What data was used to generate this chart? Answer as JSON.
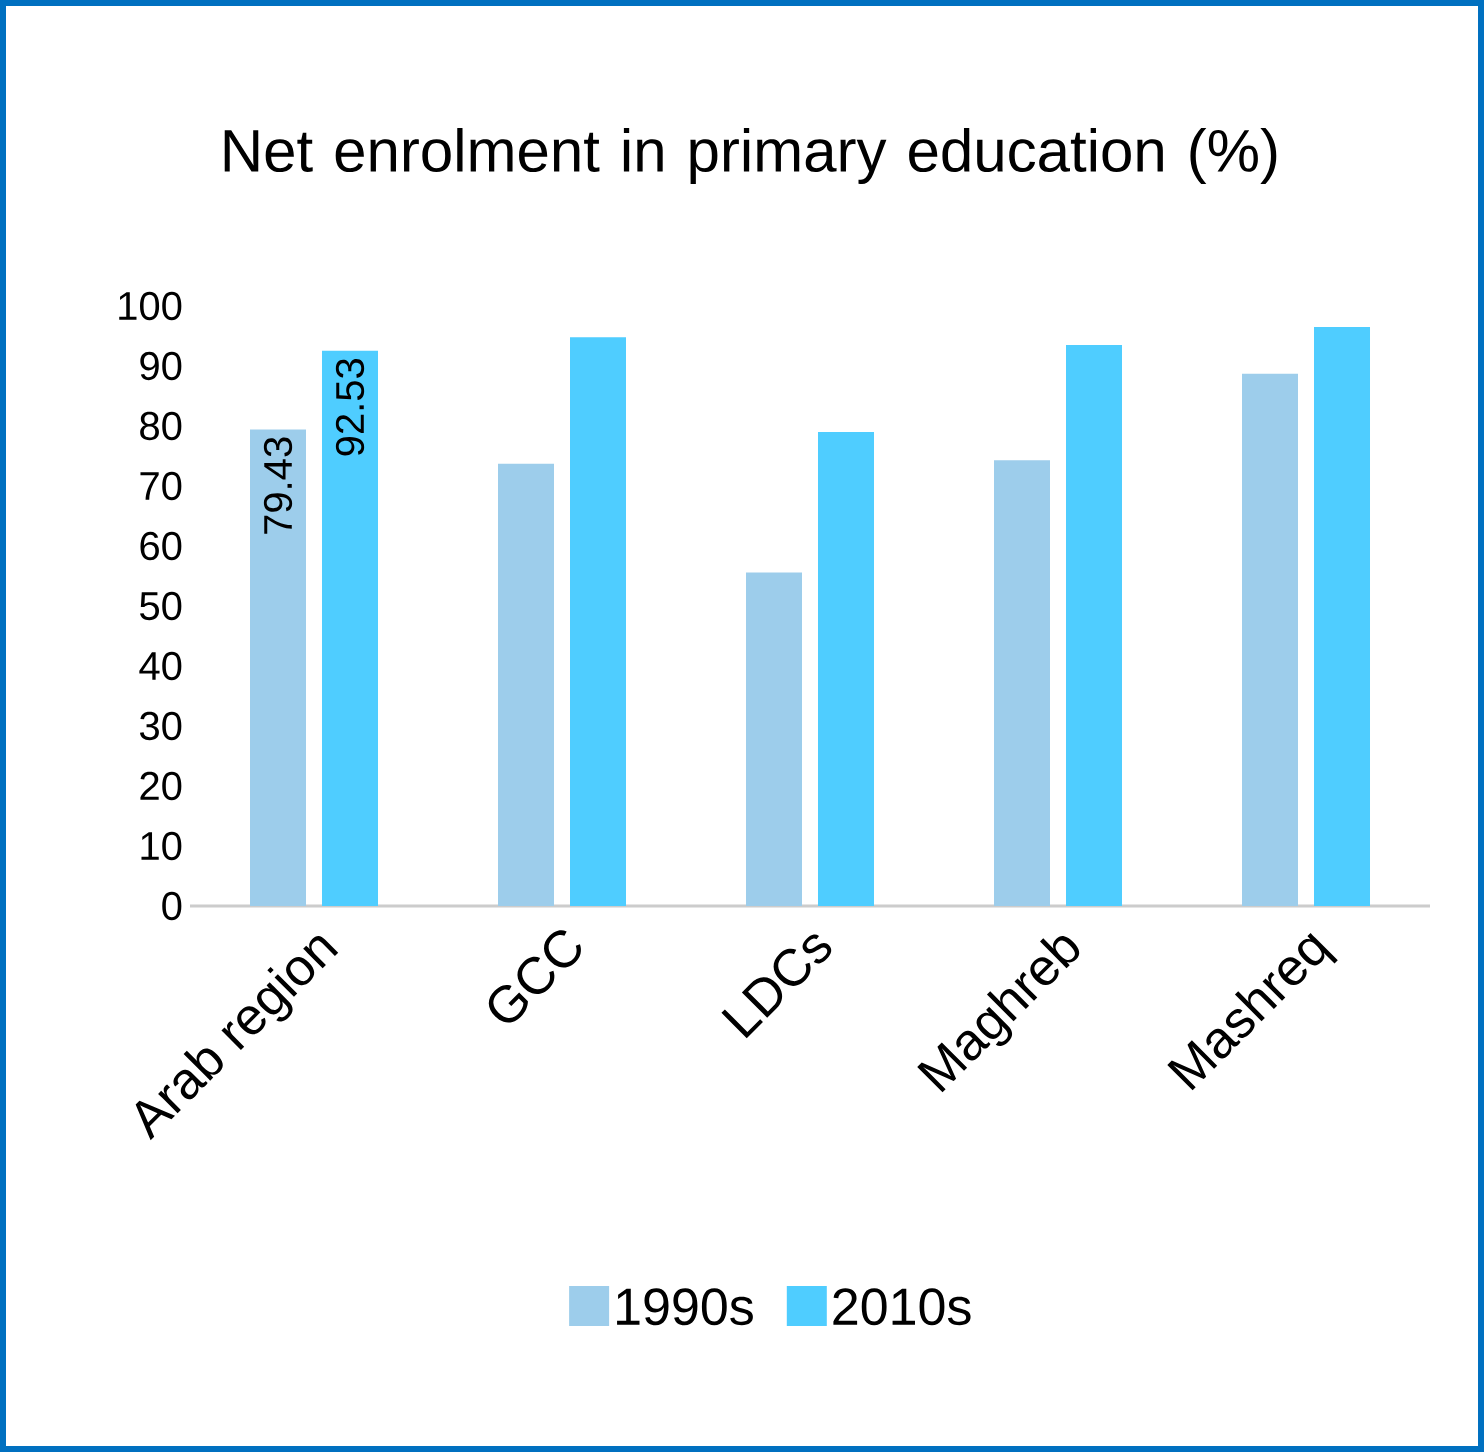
{
  "chart_data": {
    "type": "bar",
    "title": "Net enrolment in primary education (%)",
    "categories": [
      "Arab region",
      "GCC",
      "LDCs",
      "Maghreb",
      "Mashreq"
    ],
    "series": [
      {
        "name": "1990s",
        "color": "#9dcdeb",
        "values": [
          79.43,
          73.7,
          55.6,
          74.3,
          88.7
        ],
        "value_labels": [
          "79.43",
          null,
          null,
          null,
          null
        ]
      },
      {
        "name": "2010s",
        "color": "#4fcdff",
        "values": [
          92.53,
          94.8,
          79.0,
          93.5,
          96.5
        ],
        "value_labels": [
          "92.53",
          null,
          null,
          null,
          null
        ]
      }
    ],
    "ylim": [
      0,
      100
    ],
    "yticks": [
      0,
      10,
      20,
      30,
      40,
      50,
      60,
      70,
      80,
      90,
      100
    ],
    "legend": "bottom"
  }
}
